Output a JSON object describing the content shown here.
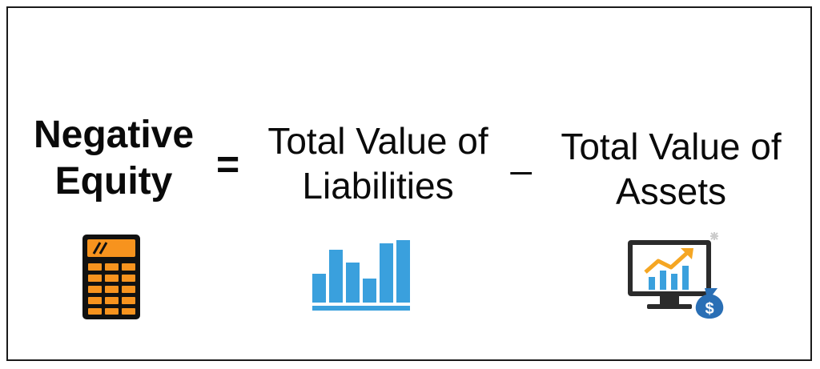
{
  "formula": {
    "result": {
      "line1": "Negative",
      "line2": "Equity"
    },
    "equals": "=",
    "term1": {
      "line1": "Total Value of",
      "line2": "Liabilities"
    },
    "minus": "_",
    "term2": {
      "line1": "Total Value of",
      "line2": "Assets"
    }
  },
  "icons": {
    "result_icon": "calculator-icon",
    "term1_icon": "bar-chart-icon",
    "term2_icon": "monitor-growth-money-bag-icon",
    "money_symbol": "$"
  },
  "colors": {
    "text": "#0a0a0a",
    "calculator_orange": "#f7931e",
    "calculator_body": "#111111",
    "chart_blue": "#3aa0dd",
    "monitor_dark": "#2b2b2b",
    "growth_arrow": "#f5a623",
    "money_bag_blue": "#2a6fb5"
  }
}
